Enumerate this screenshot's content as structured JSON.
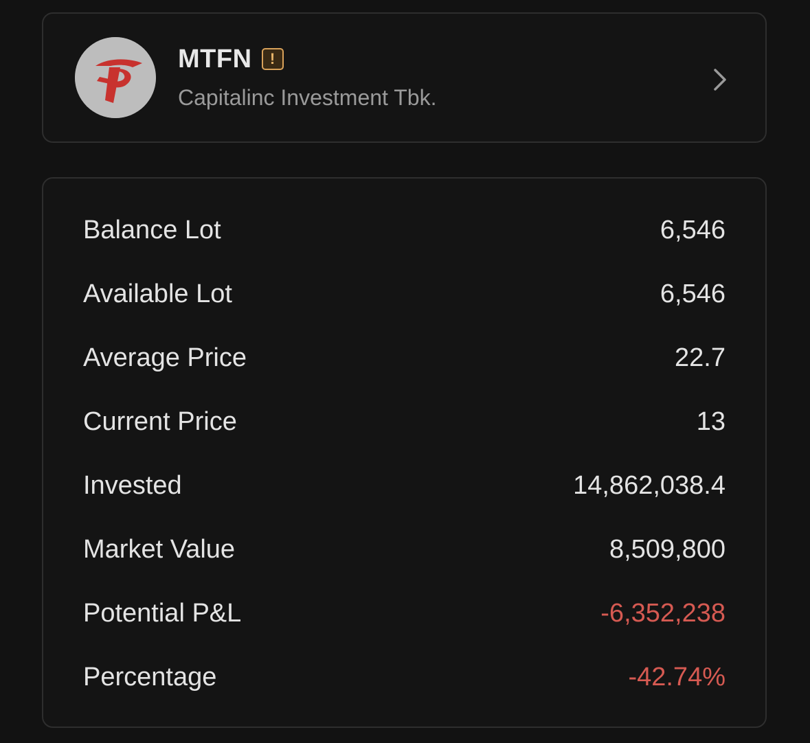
{
  "stock": {
    "ticker": "MTFN",
    "warning_badge": "!",
    "company_name": "Capitalinc Investment Tbk.",
    "logo_icon": "capitalinc-logo-icon",
    "chevron_icon": "chevron-right-icon",
    "colors": {
      "logo_background": "#bdbdbd",
      "logo_mark": "#c8322e",
      "warning_border": "#d9a25a"
    }
  },
  "details": {
    "rows": [
      {
        "label": "Balance Lot",
        "value": "6,546"
      },
      {
        "label": "Available Lot",
        "value": "6,546"
      },
      {
        "label": "Average Price",
        "value": "22.7"
      },
      {
        "label": "Current Price",
        "value": "13"
      },
      {
        "label": "Invested",
        "value": "14,862,038.4"
      },
      {
        "label": "Market Value",
        "value": "8,509,800"
      },
      {
        "label": "Potential P&L",
        "value": "-6,352,238"
      },
      {
        "label": "Percentage",
        "value": "-42.74%"
      }
    ],
    "colors": {
      "negative": "#d65a52",
      "text": "#e4e4e4"
    }
  }
}
